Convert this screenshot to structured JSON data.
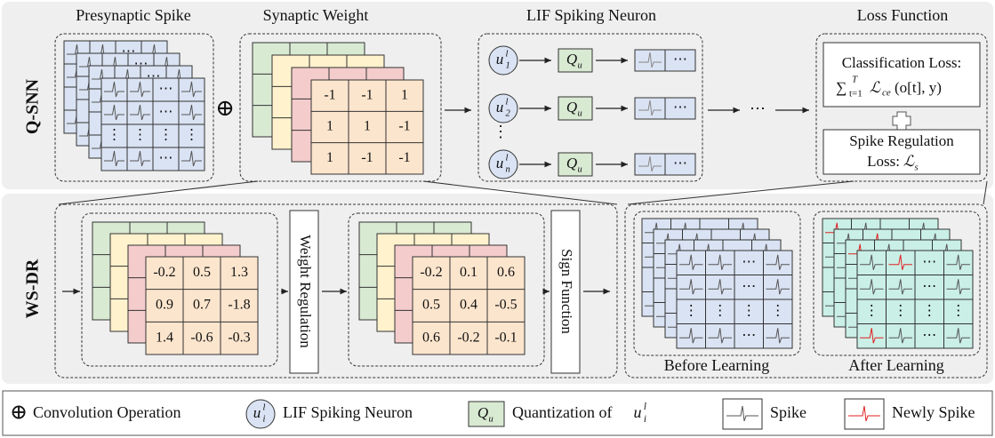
{
  "qsnn": {
    "label": "Q-SNN",
    "titles": [
      "Presynaptic Spike",
      "Synaptic Weight",
      "LIF Spiking Neuron",
      "Loss Function"
    ],
    "conv_symbol": "⊕",
    "ellipsis_h": "⋯",
    "ellipsis_v": "⋮",
    "weights": [
      [
        -1,
        -1,
        1
      ],
      [
        1,
        1,
        -1
      ],
      [
        1,
        -1,
        -1
      ]
    ],
    "neurons": [
      {
        "base": "u",
        "sub": "1",
        "sup": "l"
      },
      {
        "base": "u",
        "sub": "2",
        "sup": "l"
      },
      {
        "base": "u",
        "sub": "n",
        "sup": "l"
      }
    ],
    "quantizer": {
      "base": "Q",
      "sub": "u"
    },
    "loss": {
      "classification": "Classification Loss:",
      "formula": {
        "sum": "∑",
        "sub": "t=1",
        "sup": "T",
        "term": "ℒ",
        "term_sub": "ce",
        "args": "(o[t], y)"
      },
      "spike_reg": [
        "Spike Regulation",
        "Loss:"
      ],
      "spike_sym": {
        "base": "ℒ",
        "sub": "s"
      }
    }
  },
  "wsdr": {
    "label": "WS-DR",
    "weight_regulation": "Weight Regulation",
    "sign_function": "Sign Function",
    "real_weights": [
      [
        -0.2,
        0.5,
        1.3
      ],
      [
        0.9,
        0.7,
        -1.8
      ],
      [
        1.4,
        -0.6,
        -0.3
      ]
    ],
    "regulated_weights": [
      [
        -0.2,
        0.1,
        0.6
      ],
      [
        0.5,
        0.4,
        -0.5
      ],
      [
        0.6,
        -0.2,
        -0.1
      ]
    ],
    "before": "Before Learning",
    "after": "After Learning"
  },
  "legend": {
    "conv_symbol": "⊕",
    "conv": "Convolution Operation",
    "neuron": {
      "base": "u",
      "sub": "i",
      "sup": "l"
    },
    "neuron_label": "LIF Spiking Neuron",
    "quantizer": {
      "base": "Q",
      "sub": "u"
    },
    "quant_label": "Quantization of",
    "quant_var": {
      "base": "u",
      "sub": "i",
      "sup": "l"
    },
    "spike": "Spike",
    "new_spike": "Newly Spike"
  }
}
